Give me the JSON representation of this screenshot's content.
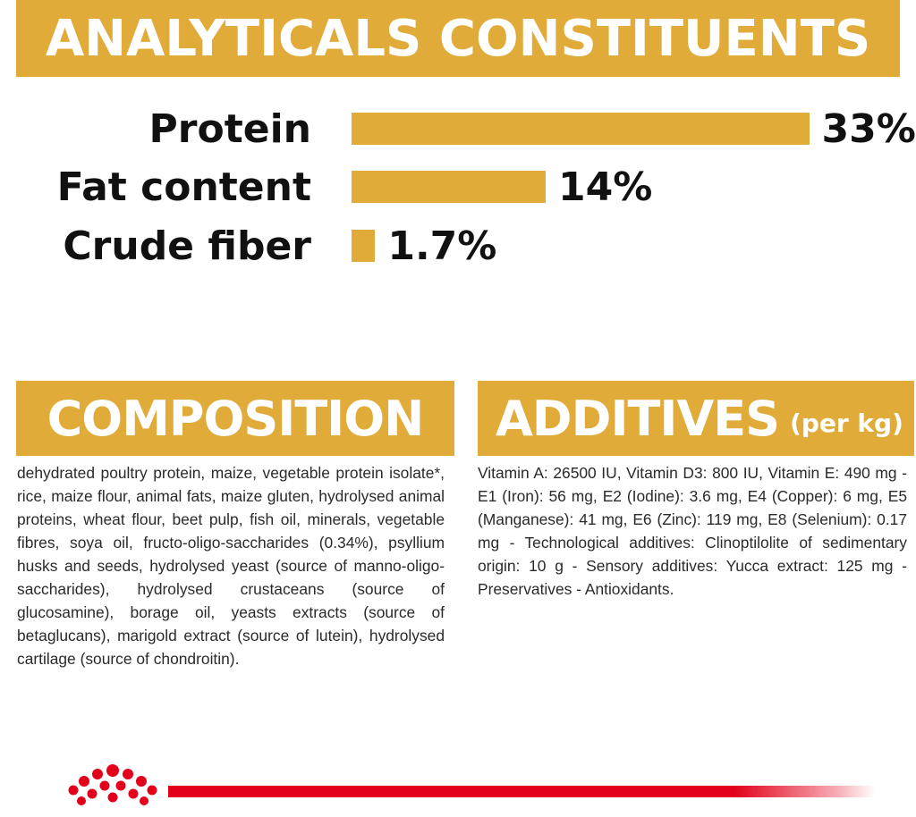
{
  "analytical": {
    "title": "ANALYTICALS CONSTITUENTS"
  },
  "chart_data": {
    "type": "bar",
    "orientation": "horizontal",
    "title": "ANALYTICALS CONSTITUENTS",
    "categories": [
      "Protein",
      "Fat content",
      "Crude fiber"
    ],
    "values": [
      33,
      14,
      1.7
    ],
    "value_labels": [
      "33%",
      "14%",
      "1.7%"
    ],
    "unit": "%",
    "bar_color": "#e1ab3a",
    "grid": false
  },
  "composition": {
    "title": "COMPOSITION",
    "text": "dehydrated poultry protein, maize, vegetable protein isolate*, rice, maize flour, animal fats, maize gluten, hydrolysed animal proteins, wheat flour, beet pulp, fish oil, minerals, vegetable fibres, soya oil, fructo-oligo-saccharides (0.34%), psyllium husks and seeds, hydrolysed yeast (source of manno-oligo-saccharides), hydrolysed crustaceans (source of glucosamine), borage oil, yeasts extracts (source of betaglucans), marigold extract (source of lutein), hydrolysed cartilage (source of chondroitin)."
  },
  "additives": {
    "title": "ADDITIVES",
    "subtitle": "(per kg)",
    "text": "Vitamin A: 26500 IU, Vitamin D3: 800 IU, Vitamin E: 490 mg - E1 (Iron): 56 mg, E2 (Iodine): 3.6 mg, E4 (Copper): 6 mg, E5 (Manganese): 41 mg, E6 (Zinc): 119 mg, E8 (Selenium): 0.17 mg - Technological additives: Clinoptilolite of sedimentary origin: 10 g - Sensory additives: Yucca extract: 125 mg - Preservatives - Antioxidants."
  },
  "footer": {
    "logo_icon": "royal-canin-crown-icon",
    "accent_color": "#e2001a"
  },
  "colors": {
    "banner": "#e1ab3a",
    "brand_red": "#e2001a"
  }
}
